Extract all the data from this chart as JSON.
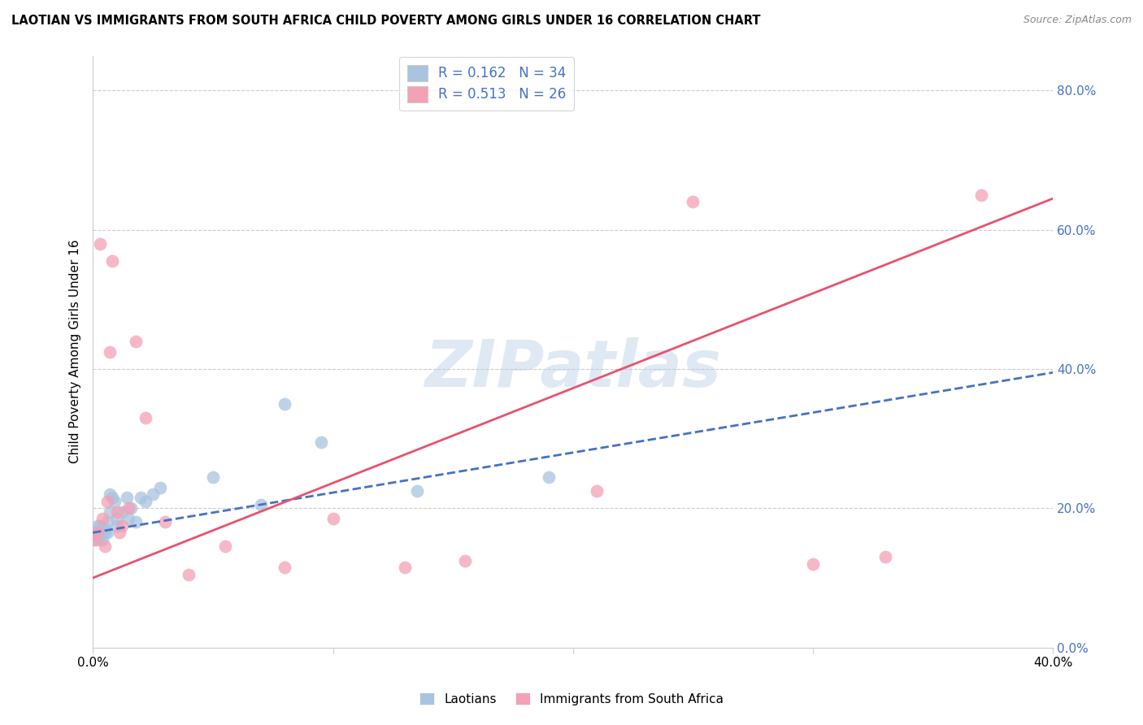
{
  "title": "LAOTIAN VS IMMIGRANTS FROM SOUTH AFRICA CHILD POVERTY AMONG GIRLS UNDER 16 CORRELATION CHART",
  "source": "Source: ZipAtlas.com",
  "ylabel": "Child Poverty Among Girls Under 16",
  "xlabel_laotian": "Laotians",
  "xlabel_sa": "Immigrants from South Africa",
  "watermark": "ZIPatlas",
  "xmin": 0.0,
  "xmax": 0.4,
  "ymin": 0.0,
  "ymax": 0.85,
  "yticks": [
    0.0,
    0.2,
    0.4,
    0.6,
    0.8
  ],
  "ytick_labels": [
    "0.0%",
    "20.0%",
    "40.0%",
    "60.0%",
    "80.0%"
  ],
  "xticks": [
    0.0,
    0.1,
    0.2,
    0.3,
    0.4
  ],
  "xtick_labels": [
    "0.0%",
    "",
    "",
    "",
    "40.0%"
  ],
  "r_laotian": 0.162,
  "n_laotian": 34,
  "r_sa": 0.513,
  "n_sa": 26,
  "color_laotian": "#a8c4e0",
  "color_sa": "#f4a0b5",
  "line_color_laotian": "#4472c4",
  "line_color_sa": "#e8526e",
  "legend_text_color_blue": "#4472c4",
  "legend_text_color_pink": "#e8526e",
  "scatter_laotian_x": [
    0.001,
    0.001,
    0.002,
    0.002,
    0.003,
    0.003,
    0.003,
    0.004,
    0.004,
    0.005,
    0.005,
    0.006,
    0.006,
    0.007,
    0.007,
    0.008,
    0.009,
    0.01,
    0.01,
    0.012,
    0.014,
    0.015,
    0.016,
    0.018,
    0.02,
    0.022,
    0.025,
    0.028,
    0.05,
    0.07,
    0.08,
    0.095,
    0.135,
    0.19
  ],
  "scatter_laotian_y": [
    0.155,
    0.165,
    0.16,
    0.175,
    0.155,
    0.165,
    0.175,
    0.155,
    0.17,
    0.165,
    0.17,
    0.165,
    0.18,
    0.195,
    0.22,
    0.215,
    0.21,
    0.185,
    0.175,
    0.195,
    0.215,
    0.185,
    0.2,
    0.18,
    0.215,
    0.21,
    0.22,
    0.23,
    0.245,
    0.205,
    0.35,
    0.295,
    0.225,
    0.245
  ],
  "scatter_sa_x": [
    0.001,
    0.002,
    0.003,
    0.004,
    0.005,
    0.006,
    0.007,
    0.008,
    0.01,
    0.011,
    0.012,
    0.015,
    0.018,
    0.022,
    0.03,
    0.04,
    0.055,
    0.08,
    0.1,
    0.13,
    0.155,
    0.21,
    0.25,
    0.3,
    0.33,
    0.37
  ],
  "scatter_sa_y": [
    0.155,
    0.165,
    0.58,
    0.185,
    0.145,
    0.21,
    0.425,
    0.555,
    0.195,
    0.165,
    0.175,
    0.2,
    0.44,
    0.33,
    0.18,
    0.105,
    0.145,
    0.115,
    0.185,
    0.115,
    0.125,
    0.225,
    0.64,
    0.12,
    0.13,
    0.65
  ],
  "line_lao_x0": 0.0,
  "line_lao_y0": 0.165,
  "line_lao_x1": 0.4,
  "line_lao_y1": 0.395,
  "line_sa_x0": 0.0,
  "line_sa_y0": 0.1,
  "line_sa_x1": 0.4,
  "line_sa_y1": 0.645
}
